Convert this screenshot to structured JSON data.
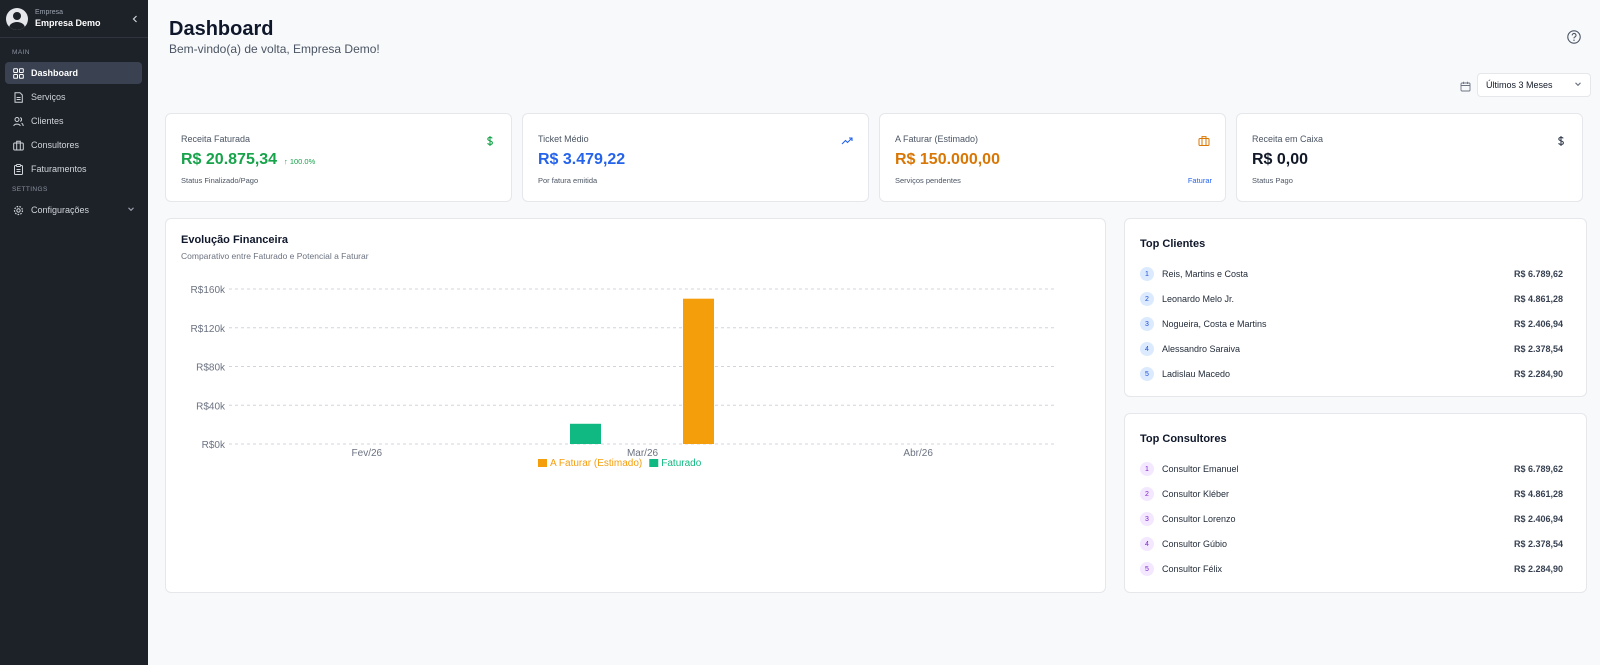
{
  "sidebar": {
    "org_label": "Empresa",
    "org_name": "Empresa Demo",
    "section_main": "MAIN",
    "section_settings": "SETTINGS",
    "items": [
      {
        "label": "Dashboard",
        "icon": "grid-icon"
      },
      {
        "label": "Serviços",
        "icon": "file-icon"
      },
      {
        "label": "Clientes",
        "icon": "users-icon"
      },
      {
        "label": "Consultores",
        "icon": "briefcase-icon"
      },
      {
        "label": "Faturamentos",
        "icon": "clipboard-icon"
      }
    ],
    "settings_item": {
      "label": "Configurações",
      "icon": "gear-icon"
    }
  },
  "header": {
    "title": "Dashboard",
    "subtitle": "Bem-vindo(a) de volta, Empresa Demo!"
  },
  "filter": {
    "period_value": "Últimos 3 Meses"
  },
  "stats": [
    {
      "label": "Receita Faturada",
      "value": "R$ 20.875,34",
      "trend": "↑ 100.0%",
      "note": "Status Finalizado/Pago",
      "color": "#16a34a",
      "icon": "dollar-icon"
    },
    {
      "label": "Ticket Médio",
      "value": "R$ 3.479,22",
      "note": "Por fatura emitida",
      "color": "#2563eb",
      "icon": "trending-up-icon"
    },
    {
      "label": "A Faturar (Estimado)",
      "value": "R$ 150.000,00",
      "note": "Serviços pendentes",
      "action": "Faturar",
      "color": "#d97706",
      "icon": "briefcase-icon"
    },
    {
      "label": "Receita em Caixa",
      "value": "R$ 0,00",
      "note": "Status Pago",
      "color": "#111827",
      "icon": "dollar-icon"
    }
  ],
  "chart_card": {
    "title": "Evolução Financeira",
    "subtitle": "Comparativo entre Faturado e Potencial a Faturar"
  },
  "chart_data": {
    "type": "bar",
    "categories": [
      "Fev/26",
      "Mar/26",
      "Abr/26"
    ],
    "series": [
      {
        "name": "Faturado",
        "values": [
          0,
          20875.34,
          0
        ],
        "color": "#10b981"
      },
      {
        "name": "A Faturar (Estimado)",
        "values": [
          0,
          150000,
          0
        ],
        "color": "#f59e0b"
      }
    ],
    "legend_order": [
      "A Faturar (Estimado)",
      "Faturado"
    ],
    "ylim": [
      0,
      160000
    ],
    "yticks": [
      0,
      40000,
      80000,
      120000,
      160000
    ],
    "ytick_labels": [
      "R$0k",
      "R$40k",
      "R$80k",
      "R$120k",
      "R$160k"
    ],
    "grid": true,
    "legend_position": "bottom"
  },
  "top_clients": {
    "title": "Top Clientes",
    "items": [
      {
        "rank": "1",
        "name": "Reis, Martins e Costa",
        "amount": "R$ 6.789,62"
      },
      {
        "rank": "2",
        "name": "Leonardo Melo Jr.",
        "amount": "R$ 4.861,28"
      },
      {
        "rank": "3",
        "name": "Nogueira, Costa e Martins",
        "amount": "R$ 2.406,94"
      },
      {
        "rank": "4",
        "name": "Alessandro Saraiva",
        "amount": "R$ 2.378,54"
      },
      {
        "rank": "5",
        "name": "Ladislau Macedo",
        "amount": "R$ 2.284,90"
      }
    ]
  },
  "top_consultants": {
    "title": "Top Consultores",
    "items": [
      {
        "rank": "1",
        "name": "Consultor Emanuel",
        "amount": "R$ 6.789,62"
      },
      {
        "rank": "2",
        "name": "Consultor Kléber",
        "amount": "R$ 4.861,28"
      },
      {
        "rank": "3",
        "name": "Consultor Lorenzo",
        "amount": "R$ 2.406,94"
      },
      {
        "rank": "4",
        "name": "Consultor Gúbio",
        "amount": "R$ 2.378,54"
      },
      {
        "rank": "5",
        "name": "Consultor Félix",
        "amount": "R$ 2.284,90"
      }
    ]
  }
}
